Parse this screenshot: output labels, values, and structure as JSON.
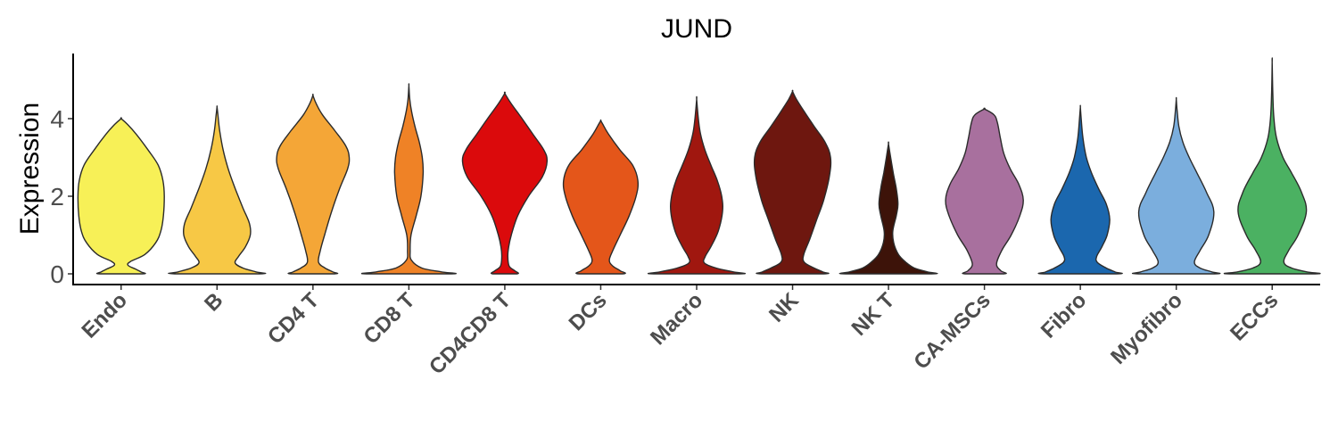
{
  "chart_data": {
    "type": "violin",
    "title": "JUND",
    "xlabel": "",
    "ylabel": "Expression",
    "ylim": [
      -0.3,
      5.7
    ],
    "yticks": [
      0,
      2,
      4
    ],
    "grid": false,
    "legend": "none",
    "categories": [
      "Endo",
      "B",
      "CD4 T",
      "CD8 T",
      "CD4CD8 T",
      "DCs",
      "Macro",
      "NK",
      "NK T",
      "CA-MSCs",
      "Fibro",
      "Myofibro",
      "ECCs"
    ],
    "series": [
      {
        "category": "Endo",
        "color": "#F7F057",
        "max": 4.0,
        "profile": [
          [
            0,
            0.49
          ],
          [
            0.05,
            0.46
          ],
          [
            0.12,
            0.34
          ],
          [
            0.22,
            0.16
          ],
          [
            0.32,
            0.22
          ],
          [
            0.5,
            0.55
          ],
          [
            0.8,
            0.8
          ],
          [
            1.1,
            0.92
          ],
          [
            1.5,
            0.98
          ],
          [
            2.0,
            1.0
          ],
          [
            2.4,
            0.97
          ],
          [
            2.8,
            0.86
          ],
          [
            3.2,
            0.62
          ],
          [
            3.6,
            0.35
          ],
          [
            3.85,
            0.15
          ],
          [
            4.0,
            0.0
          ]
        ]
      },
      {
        "category": "B",
        "color": "#F7C845",
        "max": 4.3,
        "profile": [
          [
            0,
            0.98
          ],
          [
            0.05,
            0.9
          ],
          [
            0.15,
            0.6
          ],
          [
            0.28,
            0.42
          ],
          [
            0.45,
            0.5
          ],
          [
            0.7,
            0.66
          ],
          [
            1.0,
            0.77
          ],
          [
            1.3,
            0.75
          ],
          [
            1.7,
            0.6
          ],
          [
            2.2,
            0.42
          ],
          [
            2.7,
            0.26
          ],
          [
            3.2,
            0.14
          ],
          [
            3.7,
            0.06
          ],
          [
            4.1,
            0.02
          ],
          [
            4.3,
            0.0
          ]
        ]
      },
      {
        "category": "CD4 T",
        "color": "#F4A637",
        "max": 4.6,
        "profile": [
          [
            0,
            0.5
          ],
          [
            0.05,
            0.46
          ],
          [
            0.15,
            0.28
          ],
          [
            0.3,
            0.13
          ],
          [
            0.6,
            0.17
          ],
          [
            1.0,
            0.27
          ],
          [
            1.6,
            0.43
          ],
          [
            2.2,
            0.62
          ],
          [
            2.7,
            0.8
          ],
          [
            3.0,
            0.84
          ],
          [
            3.3,
            0.76
          ],
          [
            3.7,
            0.5
          ],
          [
            4.1,
            0.22
          ],
          [
            4.4,
            0.07
          ],
          [
            4.6,
            0.0
          ]
        ]
      },
      {
        "category": "CD8 T",
        "color": "#EF8226",
        "max": 4.85,
        "profile": [
          [
            0,
            0.98
          ],
          [
            0.05,
            0.75
          ],
          [
            0.15,
            0.3
          ],
          [
            0.35,
            0.06
          ],
          [
            0.6,
            0.03
          ],
          [
            1.0,
            0.05
          ],
          [
            1.5,
            0.17
          ],
          [
            2.0,
            0.28
          ],
          [
            2.6,
            0.33
          ],
          [
            3.0,
            0.31
          ],
          [
            3.4,
            0.24
          ],
          [
            3.8,
            0.14
          ],
          [
            4.2,
            0.06
          ],
          [
            4.5,
            0.02
          ],
          [
            4.85,
            0.0
          ]
        ]
      },
      {
        "category": "CD4CD8 T",
        "color": "#DB0A0C",
        "max": 4.65,
        "profile": [
          [
            0,
            0.28
          ],
          [
            0.08,
            0.23
          ],
          [
            0.2,
            0.1
          ],
          [
            0.45,
            0.07
          ],
          [
            0.7,
            0.09
          ],
          [
            1.0,
            0.15
          ],
          [
            1.5,
            0.3
          ],
          [
            2.0,
            0.55
          ],
          [
            2.5,
            0.87
          ],
          [
            2.9,
            0.98
          ],
          [
            3.2,
            0.9
          ],
          [
            3.6,
            0.65
          ],
          [
            4.0,
            0.4
          ],
          [
            4.4,
            0.14
          ],
          [
            4.65,
            0.0
          ]
        ]
      },
      {
        "category": "DCs",
        "color": "#E4561A",
        "max": 3.95,
        "profile": [
          [
            0,
            0.5
          ],
          [
            0.08,
            0.45
          ],
          [
            0.2,
            0.28
          ],
          [
            0.35,
            0.2
          ],
          [
            0.6,
            0.28
          ],
          [
            1.0,
            0.45
          ],
          [
            1.5,
            0.66
          ],
          [
            2.0,
            0.82
          ],
          [
            2.4,
            0.86
          ],
          [
            2.8,
            0.74
          ],
          [
            3.2,
            0.44
          ],
          [
            3.6,
            0.18
          ],
          [
            3.85,
            0.05
          ],
          [
            3.95,
            0.0
          ]
        ]
      },
      {
        "category": "Macro",
        "color": "#A0170F",
        "max": 4.5,
        "profile": [
          [
            0,
            0.99
          ],
          [
            0.05,
            0.85
          ],
          [
            0.15,
            0.45
          ],
          [
            0.28,
            0.18
          ],
          [
            0.45,
            0.2
          ],
          [
            0.7,
            0.33
          ],
          [
            1.1,
            0.5
          ],
          [
            1.6,
            0.6
          ],
          [
            2.0,
            0.58
          ],
          [
            2.4,
            0.48
          ],
          [
            2.8,
            0.33
          ],
          [
            3.2,
            0.19
          ],
          [
            3.6,
            0.09
          ],
          [
            4.0,
            0.04
          ],
          [
            4.5,
            0.0
          ]
        ]
      },
      {
        "category": "NK",
        "color": "#6E170F",
        "max": 4.7,
        "profile": [
          [
            0,
            0.72
          ],
          [
            0.05,
            0.7
          ],
          [
            0.15,
            0.5
          ],
          [
            0.3,
            0.27
          ],
          [
            0.5,
            0.26
          ],
          [
            0.9,
            0.4
          ],
          [
            1.4,
            0.56
          ],
          [
            1.9,
            0.72
          ],
          [
            2.5,
            0.85
          ],
          [
            3.0,
            0.88
          ],
          [
            3.4,
            0.75
          ],
          [
            3.8,
            0.5
          ],
          [
            4.2,
            0.26
          ],
          [
            4.5,
            0.09
          ],
          [
            4.7,
            0.0
          ]
        ]
      },
      {
        "category": "NK T",
        "color": "#3D1309",
        "max": 3.35,
        "profile": [
          [
            0,
            0.99
          ],
          [
            0.05,
            0.9
          ],
          [
            0.15,
            0.6
          ],
          [
            0.3,
            0.4
          ],
          [
            0.5,
            0.23
          ],
          [
            0.8,
            0.12
          ],
          [
            1.1,
            0.1
          ],
          [
            1.5,
            0.18
          ],
          [
            1.8,
            0.22
          ],
          [
            2.2,
            0.18
          ],
          [
            2.6,
            0.11
          ],
          [
            3.0,
            0.05
          ],
          [
            3.35,
            0.0
          ]
        ]
      },
      {
        "category": "CA-MSCs",
        "color": "#A8709E",
        "max": 4.25,
        "profile": [
          [
            0,
            0.45
          ],
          [
            0.08,
            0.38
          ],
          [
            0.25,
            0.28
          ],
          [
            0.6,
            0.4
          ],
          [
            1.0,
            0.62
          ],
          [
            1.5,
            0.82
          ],
          [
            1.9,
            0.9
          ],
          [
            2.3,
            0.8
          ],
          [
            2.7,
            0.6
          ],
          [
            3.1,
            0.45
          ],
          [
            3.5,
            0.37
          ],
          [
            3.9,
            0.3
          ],
          [
            4.1,
            0.22
          ],
          [
            4.25,
            0.0
          ]
        ]
      },
      {
        "category": "Fibro",
        "color": "#1B67AE",
        "max": 4.3,
        "profile": [
          [
            0,
            0.84
          ],
          [
            0.05,
            0.8
          ],
          [
            0.15,
            0.6
          ],
          [
            0.3,
            0.39
          ],
          [
            0.45,
            0.38
          ],
          [
            0.7,
            0.5
          ],
          [
            1.0,
            0.62
          ],
          [
            1.4,
            0.68
          ],
          [
            1.8,
            0.6
          ],
          [
            2.2,
            0.42
          ],
          [
            2.6,
            0.26
          ],
          [
            3.0,
            0.14
          ],
          [
            3.5,
            0.06
          ],
          [
            4.0,
            0.02
          ],
          [
            4.3,
            0.0
          ]
        ]
      },
      {
        "category": "Myofibro",
        "color": "#7BAEDD",
        "max": 4.5,
        "profile": [
          [
            0,
            0.88
          ],
          [
            0.05,
            0.82
          ],
          [
            0.15,
            0.55
          ],
          [
            0.3,
            0.42
          ],
          [
            0.6,
            0.55
          ],
          [
            1.0,
            0.75
          ],
          [
            1.6,
            0.87
          ],
          [
            2.1,
            0.7
          ],
          [
            2.6,
            0.48
          ],
          [
            3.0,
            0.3
          ],
          [
            3.4,
            0.15
          ],
          [
            3.8,
            0.06
          ],
          [
            4.2,
            0.02
          ],
          [
            4.5,
            0.0
          ]
        ]
      },
      {
        "category": "ECCs",
        "color": "#4BB162",
        "max": 5.45,
        "profile": [
          [
            0,
            0.99
          ],
          [
            0.05,
            0.8
          ],
          [
            0.15,
            0.45
          ],
          [
            0.3,
            0.27
          ],
          [
            0.6,
            0.38
          ],
          [
            1.0,
            0.6
          ],
          [
            1.6,
            0.79
          ],
          [
            2.1,
            0.68
          ],
          [
            2.6,
            0.45
          ],
          [
            3.0,
            0.25
          ],
          [
            3.5,
            0.1
          ],
          [
            4.0,
            0.04
          ],
          [
            4.6,
            0.015
          ],
          [
            5.45,
            0.0
          ]
        ]
      }
    ]
  }
}
